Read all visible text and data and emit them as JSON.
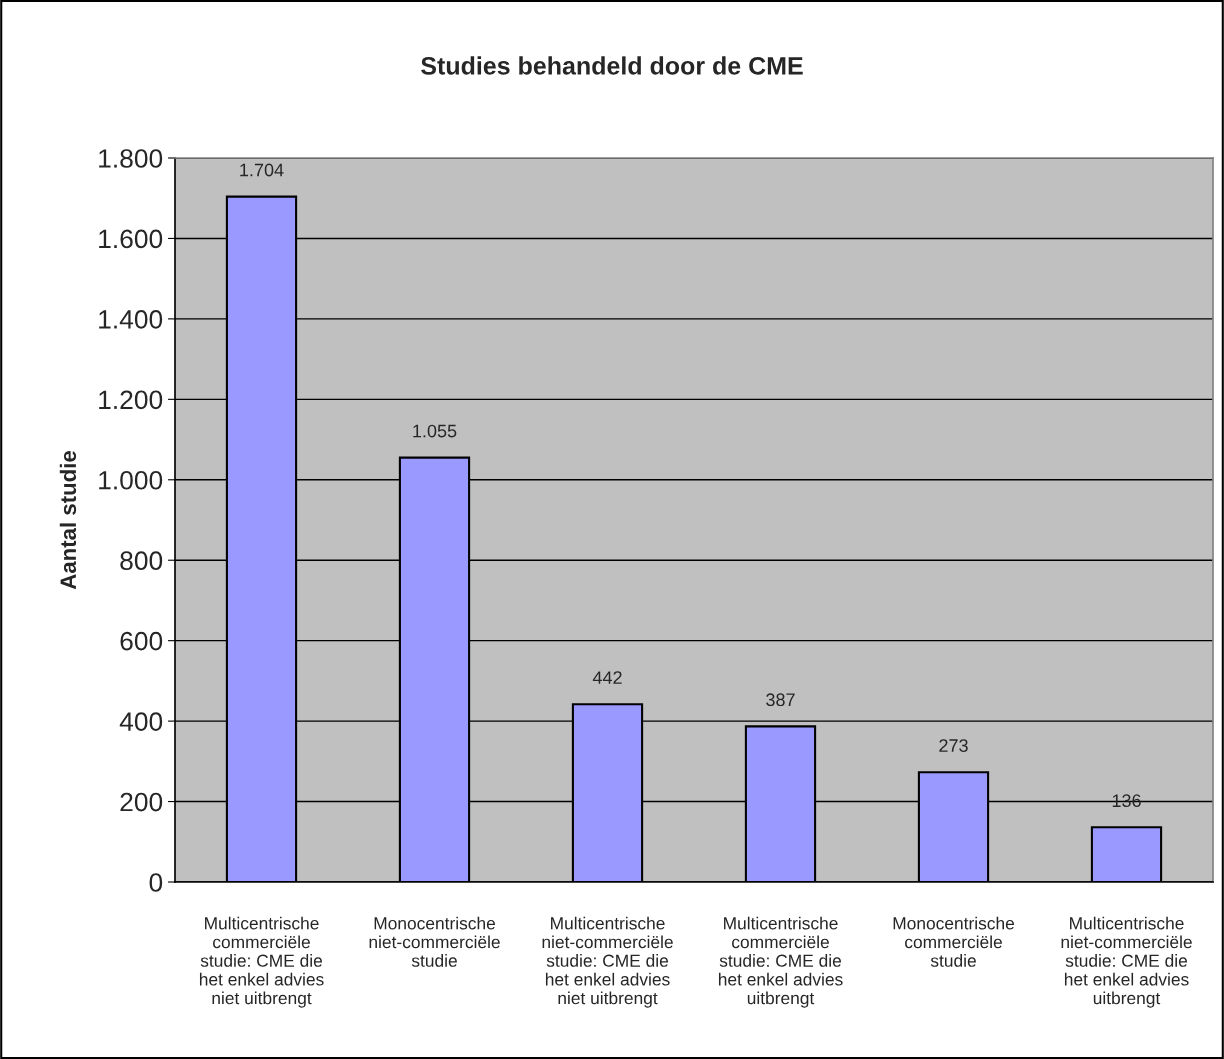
{
  "chart_data": {
    "type": "bar",
    "title": "Studies behandeld door de CME",
    "ylabel": "Aantal studie",
    "categories": [
      "Multicentrische\ncommerciële\nstudie: CME die\nhet enkel advies\nniet uitbrengt",
      "Monocentrische\nniet-commerciële\nstudie",
      "Multicentrische\nniet-commerciële\nstudie: CME die\nhet enkel advies\nniet uitbrengt",
      "Multicentrische\ncommerciële\nstudie: CME die\nhet enkel advies\nuitbrengt",
      "Monocentrische\ncommerciële\nstudie",
      "Multicentrische\nniet-commerciële\nstudie: CME die\nhet enkel advies\nuitbrengt"
    ],
    "values": [
      1704,
      1055,
      442,
      387,
      273,
      136
    ],
    "value_labels": [
      "1.704",
      "1.055",
      "442",
      "387",
      "273",
      "136"
    ],
    "color": "#9999ff",
    "ylim": [
      0,
      1800
    ],
    "yticks": [
      0,
      200,
      400,
      600,
      800,
      {
        "value": 1000,
        "label": "1.000"
      },
      {
        "value": 1200,
        "label": "1.200"
      },
      {
        "value": 1400,
        "label": "1.400"
      },
      {
        "value": 1600,
        "label": "1.600"
      },
      {
        "value": 1800,
        "label": "1.800"
      }
    ],
    "grid": "y",
    "legend": false
  }
}
